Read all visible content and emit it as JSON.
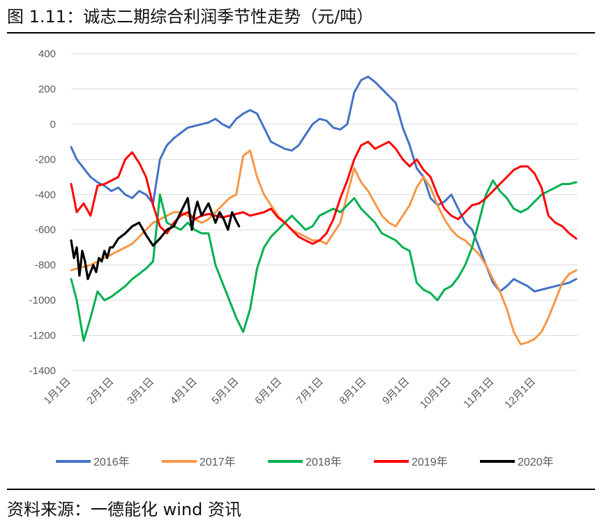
{
  "title": "图 1.11：诚志二期综合利润季节性走势（元/吨）",
  "source": "资料来源：一德能化  wind 资讯",
  "chart_data": {
    "type": "line",
    "title": "诚志二期综合利润季节性走势（元/吨）",
    "xlabel": "",
    "ylabel": "",
    "ylim": [
      -1400,
      400
    ],
    "yticks": [
      400,
      200,
      0,
      -200,
      -400,
      -600,
      -800,
      -1000,
      -1200,
      -1400
    ],
    "ytick_labels": [
      "400",
      "200",
      "0",
      "-200",
      "-400",
      "-600",
      "-800",
      "-1000",
      "-1200",
      "-1400"
    ],
    "xlim": [
      1,
      366
    ],
    "xticks": [
      1,
      32,
      61,
      92,
      122,
      153,
      183,
      214,
      245,
      275,
      306,
      336
    ],
    "xtick_labels": [
      "1月1日",
      "2月1日",
      "3月1日",
      "4月1日",
      "5月1日",
      "6月1日",
      "7月1日",
      "8月1日",
      "9月1日",
      "10月1日",
      "11月1日",
      "12月1日"
    ],
    "grid": "horizontal",
    "legend": "bottom",
    "series": [
      {
        "name": "2016年",
        "color": "#4472C4",
        "x": [
          1,
          5,
          10,
          15,
          20,
          25,
          30,
          35,
          40,
          45,
          50,
          55,
          60,
          65,
          70,
          75,
          80,
          85,
          90,
          95,
          100,
          105,
          110,
          115,
          120,
          125,
          130,
          135,
          140,
          145,
          150,
          155,
          160,
          165,
          170,
          175,
          180,
          185,
          190,
          195,
          200,
          205,
          210,
          215,
          220,
          225,
          230,
          235,
          240,
          245,
          250,
          255,
          260,
          265,
          270,
          275,
          280,
          285,
          290,
          295,
          300,
          305,
          310,
          315,
          320,
          325,
          330,
          335,
          340,
          345,
          350,
          355,
          360,
          365
        ],
        "y": [
          -130,
          -200,
          -250,
          -300,
          -330,
          -350,
          -380,
          -360,
          -400,
          -420,
          -380,
          -400,
          -450,
          -200,
          -120,
          -80,
          -50,
          -20,
          -10,
          0,
          10,
          30,
          0,
          -20,
          30,
          60,
          80,
          60,
          -20,
          -100,
          -120,
          -140,
          -150,
          -120,
          -60,
          0,
          30,
          20,
          -20,
          -30,
          0,
          180,
          250,
          270,
          240,
          200,
          160,
          120,
          -20,
          -120,
          -250,
          -300,
          -420,
          -460,
          -440,
          -400,
          -480,
          -560,
          -600,
          -700,
          -800,
          -900,
          -950,
          -920,
          -880,
          -900,
          -920,
          -950,
          -940,
          -930,
          -920,
          -910,
          -900,
          -880
        ]
      },
      {
        "name": "2017年",
        "color": "#F79646",
        "x": [
          1,
          5,
          10,
          15,
          20,
          25,
          30,
          35,
          40,
          45,
          50,
          55,
          60,
          65,
          70,
          75,
          80,
          85,
          90,
          95,
          100,
          105,
          110,
          115,
          120,
          125,
          130,
          135,
          140,
          145,
          150,
          155,
          160,
          165,
          170,
          175,
          180,
          185,
          190,
          195,
          200,
          205,
          210,
          215,
          220,
          225,
          230,
          235,
          240,
          245,
          250,
          255,
          260,
          265,
          270,
          275,
          280,
          285,
          290,
          295,
          300,
          305,
          310,
          315,
          320,
          325,
          330,
          335,
          340,
          345,
          350,
          355,
          360,
          365
        ],
        "y": [
          -830,
          -820,
          -810,
          -800,
          -780,
          -760,
          -740,
          -720,
          -700,
          -680,
          -640,
          -600,
          -560,
          -540,
          -520,
          -500,
          -500,
          -520,
          -540,
          -560,
          -540,
          -500,
          -460,
          -420,
          -400,
          -180,
          -150,
          -300,
          -400,
          -460,
          -520,
          -560,
          -600,
          -620,
          -640,
          -660,
          -660,
          -680,
          -620,
          -560,
          -400,
          -250,
          -330,
          -380,
          -450,
          -520,
          -560,
          -580,
          -520,
          -460,
          -360,
          -300,
          -360,
          -460,
          -540,
          -600,
          -640,
          -660,
          -700,
          -740,
          -800,
          -880,
          -950,
          -1050,
          -1180,
          -1250,
          -1240,
          -1220,
          -1180,
          -1100,
          -1000,
          -900,
          -850,
          -830
        ]
      },
      {
        "name": "2018年",
        "color": "#00B050",
        "x": [
          1,
          5,
          10,
          15,
          20,
          25,
          30,
          35,
          40,
          45,
          50,
          55,
          60,
          65,
          70,
          75,
          80,
          85,
          90,
          95,
          100,
          105,
          110,
          115,
          120,
          125,
          130,
          135,
          140,
          145,
          150,
          155,
          160,
          165,
          170,
          175,
          180,
          185,
          190,
          195,
          200,
          205,
          210,
          215,
          220,
          225,
          230,
          235,
          240,
          245,
          250,
          255,
          260,
          265,
          270,
          275,
          280,
          285,
          290,
          295,
          300,
          305,
          310,
          315,
          320,
          325,
          330,
          335,
          340,
          345,
          350,
          355,
          360,
          365
        ],
        "y": [
          -880,
          -1000,
          -1230,
          -1100,
          -950,
          -1000,
          -980,
          -950,
          -920,
          -880,
          -850,
          -820,
          -780,
          -400,
          -560,
          -580,
          -600,
          -560,
          -600,
          -620,
          -620,
          -800,
          -900,
          -1000,
          -1100,
          -1180,
          -1050,
          -820,
          -700,
          -640,
          -600,
          -560,
          -520,
          -560,
          -600,
          -580,
          -520,
          -500,
          -480,
          -500,
          -460,
          -420,
          -480,
          -520,
          -560,
          -620,
          -640,
          -660,
          -700,
          -720,
          -900,
          -940,
          -960,
          -1000,
          -940,
          -920,
          -870,
          -800,
          -700,
          -550,
          -400,
          -320,
          -380,
          -420,
          -480,
          -500,
          -480,
          -440,
          -400,
          -380,
          -360,
          -340,
          -340,
          -330
        ]
      },
      {
        "name": "2019年",
        "color": "#FF0000",
        "x": [
          1,
          5,
          10,
          15,
          20,
          25,
          30,
          35,
          40,
          45,
          50,
          55,
          60,
          65,
          70,
          75,
          80,
          85,
          90,
          95,
          100,
          105,
          110,
          115,
          120,
          125,
          130,
          135,
          140,
          145,
          150,
          155,
          160,
          165,
          170,
          175,
          180,
          185,
          190,
          195,
          200,
          205,
          210,
          215,
          220,
          225,
          230,
          235,
          240,
          245,
          250,
          255,
          260,
          265,
          270,
          275,
          280,
          285,
          290,
          295,
          300,
          305,
          310,
          315,
          320,
          325,
          330,
          335,
          340,
          345,
          350,
          355,
          360,
          365
        ],
        "y": [
          -340,
          -500,
          -450,
          -520,
          -350,
          -340,
          -320,
          -300,
          -200,
          -160,
          -220,
          -300,
          -460,
          -580,
          -620,
          -560,
          -520,
          -500,
          -540,
          -520,
          -510,
          -520,
          -530,
          -520,
          -510,
          -500,
          -520,
          -510,
          -500,
          -480,
          -530,
          -560,
          -600,
          -640,
          -660,
          -680,
          -660,
          -620,
          -540,
          -420,
          -320,
          -200,
          -120,
          -100,
          -140,
          -120,
          -100,
          -140,
          -200,
          -240,
          -200,
          -260,
          -300,
          -400,
          -480,
          -520,
          -540,
          -500,
          -460,
          -450,
          -420,
          -380,
          -340,
          -300,
          -260,
          -240,
          -240,
          -280,
          -360,
          -520,
          -560,
          -580,
          -620,
          -650
        ]
      },
      {
        "name": "2020年",
        "color": "#000000",
        "x": [
          1,
          3,
          5,
          7,
          9,
          11,
          13,
          15,
          17,
          19,
          21,
          23,
          25,
          27,
          29,
          31,
          35,
          40,
          45,
          50,
          55,
          60,
          65,
          70,
          75,
          80,
          85,
          88,
          90,
          92,
          95,
          100,
          105,
          108,
          111,
          114,
          117,
          120,
          122
        ],
        "y": [
          -660,
          -760,
          -700,
          -860,
          -720,
          -780,
          -880,
          -840,
          -800,
          -840,
          -760,
          -780,
          -720,
          -760,
          -700,
          -700,
          -650,
          -620,
          -580,
          -560,
          -630,
          -690,
          -650,
          -600,
          -580,
          -500,
          -420,
          -600,
          -500,
          -440,
          -520,
          -450,
          -560,
          -500,
          -540,
          -600,
          -500,
          -550,
          -580
        ]
      }
    ]
  }
}
